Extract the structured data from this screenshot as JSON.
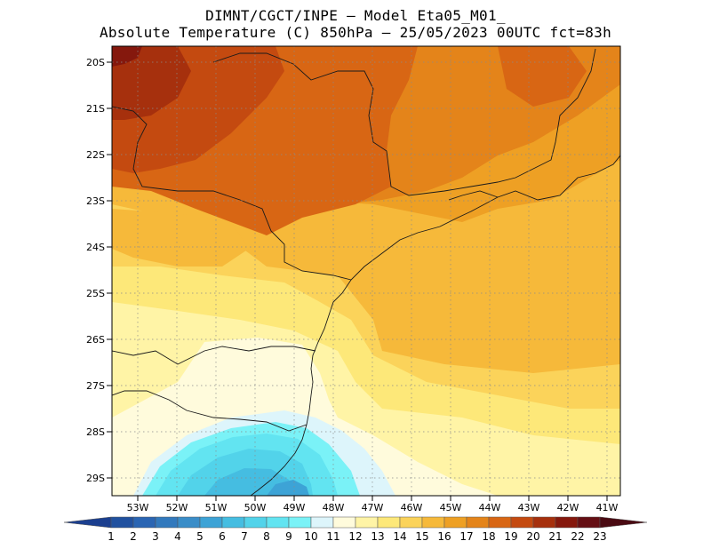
{
  "title": {
    "line1": "DIMNT/CGCT/INPE –  Model Eta05_M01_",
    "line2": "Absolute Temperature (C) 850hPa –  25/05/2023 00UTC fct=83h"
  },
  "axes": {
    "lat_labels": [
      "20S",
      "21S",
      "22S",
      "23S",
      "24S",
      "25S",
      "26S",
      "27S",
      "28S",
      "29S"
    ],
    "lon_labels": [
      "53W",
      "52W",
      "51W",
      "50W",
      "49W",
      "48W",
      "47W",
      "46W",
      "45W",
      "44W",
      "43W",
      "42W",
      "41W"
    ]
  },
  "colorbar": {
    "labels": [
      "1",
      "2",
      "3",
      "4",
      "5",
      "6",
      "7",
      "8",
      "9",
      "10",
      "11",
      "12",
      "13",
      "14",
      "15",
      "16",
      "17",
      "18",
      "19",
      "20",
      "21",
      "22",
      "23"
    ],
    "colors": [
      "#1b3f8f",
      "#21519f",
      "#2a65b3",
      "#3279bd",
      "#3a8dc8",
      "#3da3d6",
      "#45bde1",
      "#52d3ea",
      "#62e4f1",
      "#7af2f7",
      "#ddf5fb",
      "#fffbdc",
      "#fff4a6",
      "#fde879",
      "#fbd35a",
      "#f6b93a",
      "#eea024",
      "#e4841a",
      "#d86614",
      "#c44a10",
      "#a6300d",
      "#85180d",
      "#650f14",
      "#4a0a12"
    ]
  },
  "chart_data": {
    "type": "heatmap",
    "title": "Absolute Temperature (C) 850hPa",
    "source": "DIMNT/CGCT/INPE – Model Eta05_M01_",
    "valid": "25/05/2023 00UTC fct=83h",
    "lon_range": [
      -53.7,
      -40.4
    ],
    "lat_range": [
      -29.45,
      -19.95
    ],
    "contour_levels": [
      1,
      2,
      3,
      4,
      5,
      6,
      7,
      8,
      9,
      10,
      11,
      12,
      13,
      14,
      15,
      16,
      17,
      18,
      19,
      20,
      21,
      22,
      23
    ],
    "regions": [
      {
        "value": 21,
        "lon": [
          -53.5,
          -52.5
        ],
        "lat": [
          -20.2,
          -21.3
        ]
      },
      {
        "value": 19,
        "lon": [
          -52.5,
          -48.0
        ],
        "lat": [
          -20.2,
          -23.5
        ]
      },
      {
        "value": 18,
        "lon": [
          -48.5,
          -45.0
        ],
        "lat": [
          -20.2,
          -24.8
        ]
      },
      {
        "value": 17,
        "lon": [
          -45.0,
          -41.0
        ],
        "lat": [
          -20.2,
          -24.5
        ]
      },
      {
        "value": 16,
        "lon": [
          -50.5,
          -46.0
        ],
        "lat": [
          -24.0,
          -25.8
        ]
      },
      {
        "value": 14,
        "lon": [
          -53.5,
          -50.0
        ],
        "lat": [
          -24.0,
          -26.5
        ]
      },
      {
        "value": 12,
        "lon": [
          -50.0,
          -47.5
        ],
        "lat": [
          -26.0,
          -27.5
        ]
      },
      {
        "value": 9,
        "lon": [
          -51.5,
          -48.5
        ],
        "lat": [
          -28.0,
          -29.45
        ]
      },
      {
        "value": 11,
        "lon": [
          -48.5,
          -47.0
        ],
        "lat": [
          -28.2,
          -29.2
        ]
      },
      {
        "value": 13,
        "lon": [
          -46.5,
          -42.0
        ],
        "lat": [
          -27.0,
          -29.45
        ]
      },
      {
        "value": 16,
        "lon": [
          -46.0,
          -41.0
        ],
        "lat": [
          -25.0,
          -27.5
        ]
      }
    ]
  }
}
